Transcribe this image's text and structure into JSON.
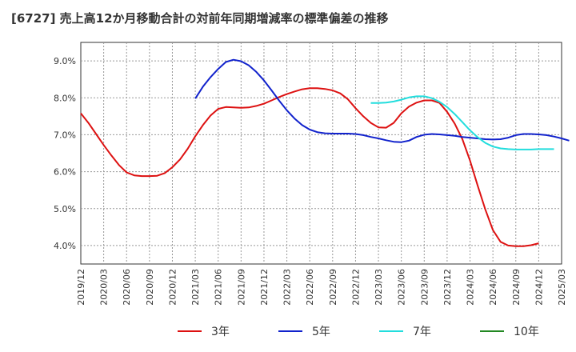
{
  "chart_data": {
    "type": "line",
    "title": "[6727]  売上高12か月移動合計の対前年同期増減率の標準偏差の推移",
    "xlabel": "",
    "ylabel": "",
    "ylim": [
      3.5,
      9.5
    ],
    "y_ticks": [
      {
        "value": 4.0,
        "label": "4.0%"
      },
      {
        "value": 5.0,
        "label": "5.0%"
      },
      {
        "value": 6.0,
        "label": "6.0%"
      },
      {
        "value": 7.0,
        "label": "7.0%"
      },
      {
        "value": 8.0,
        "label": "8.0%"
      },
      {
        "value": 9.0,
        "label": "9.0%"
      }
    ],
    "x_ticks": [
      "2019/12",
      "2020/03",
      "2020/06",
      "2020/09",
      "2020/12",
      "2021/03",
      "2021/06",
      "2021/09",
      "2021/12",
      "2022/03",
      "2022/06",
      "2022/09",
      "2022/12",
      "2023/03",
      "2023/06",
      "2023/09",
      "2023/12",
      "2024/03",
      "2024/06",
      "2024/09",
      "2024/12",
      "2025/03"
    ],
    "grid": true,
    "legend_position": "bottom",
    "series": [
      {
        "name": "3年",
        "color": "#dd1111",
        "start": "2019/12",
        "values": [
          7.58,
          7.32,
          7.02,
          6.72,
          6.44,
          6.18,
          5.98,
          5.9,
          5.88,
          5.88,
          5.89,
          5.96,
          6.12,
          6.33,
          6.62,
          6.96,
          7.26,
          7.52,
          7.7,
          7.75,
          7.74,
          7.73,
          7.74,
          7.78,
          7.84,
          7.93,
          8.02,
          8.1,
          8.17,
          8.23,
          8.26,
          8.26,
          8.24,
          8.2,
          8.12,
          7.96,
          7.72,
          7.5,
          7.32,
          7.2,
          7.19,
          7.32,
          7.58,
          7.76,
          7.87,
          7.93,
          7.93,
          7.86,
          7.62,
          7.3,
          6.88,
          6.3,
          5.62,
          4.98,
          4.42,
          4.1,
          4.0,
          3.98,
          3.98,
          4.01,
          4.06
        ]
      },
      {
        "name": "5年",
        "color": "#1122cc",
        "start": "2021/03",
        "values": [
          7.98,
          8.3,
          8.56,
          8.78,
          8.97,
          9.03,
          8.99,
          8.88,
          8.7,
          8.47,
          8.2,
          7.92,
          7.66,
          7.44,
          7.26,
          7.14,
          7.07,
          7.04,
          7.03,
          7.03,
          7.03,
          7.02,
          6.99,
          6.94,
          6.9,
          6.85,
          6.81,
          6.8,
          6.84,
          6.94,
          7.0,
          7.02,
          7.01,
          6.99,
          6.97,
          6.94,
          6.92,
          6.9,
          6.88,
          6.87,
          6.88,
          6.92,
          6.99,
          7.02,
          7.02,
          7.01,
          6.99,
          6.95,
          6.9,
          6.84
        ]
      },
      {
        "name": "7年",
        "color": "#22dddd",
        "start": "2023/02",
        "values": [
          7.86,
          7.86,
          7.87,
          7.9,
          7.95,
          8.01,
          8.04,
          8.04,
          7.99,
          7.89,
          7.75,
          7.56,
          7.34,
          7.12,
          6.93,
          6.78,
          6.68,
          6.63,
          6.61,
          6.6,
          6.6,
          6.6,
          6.61,
          6.61,
          6.61
        ]
      },
      {
        "name": "10年",
        "color": "#228822",
        "start": "2025/03",
        "values": []
      }
    ]
  }
}
